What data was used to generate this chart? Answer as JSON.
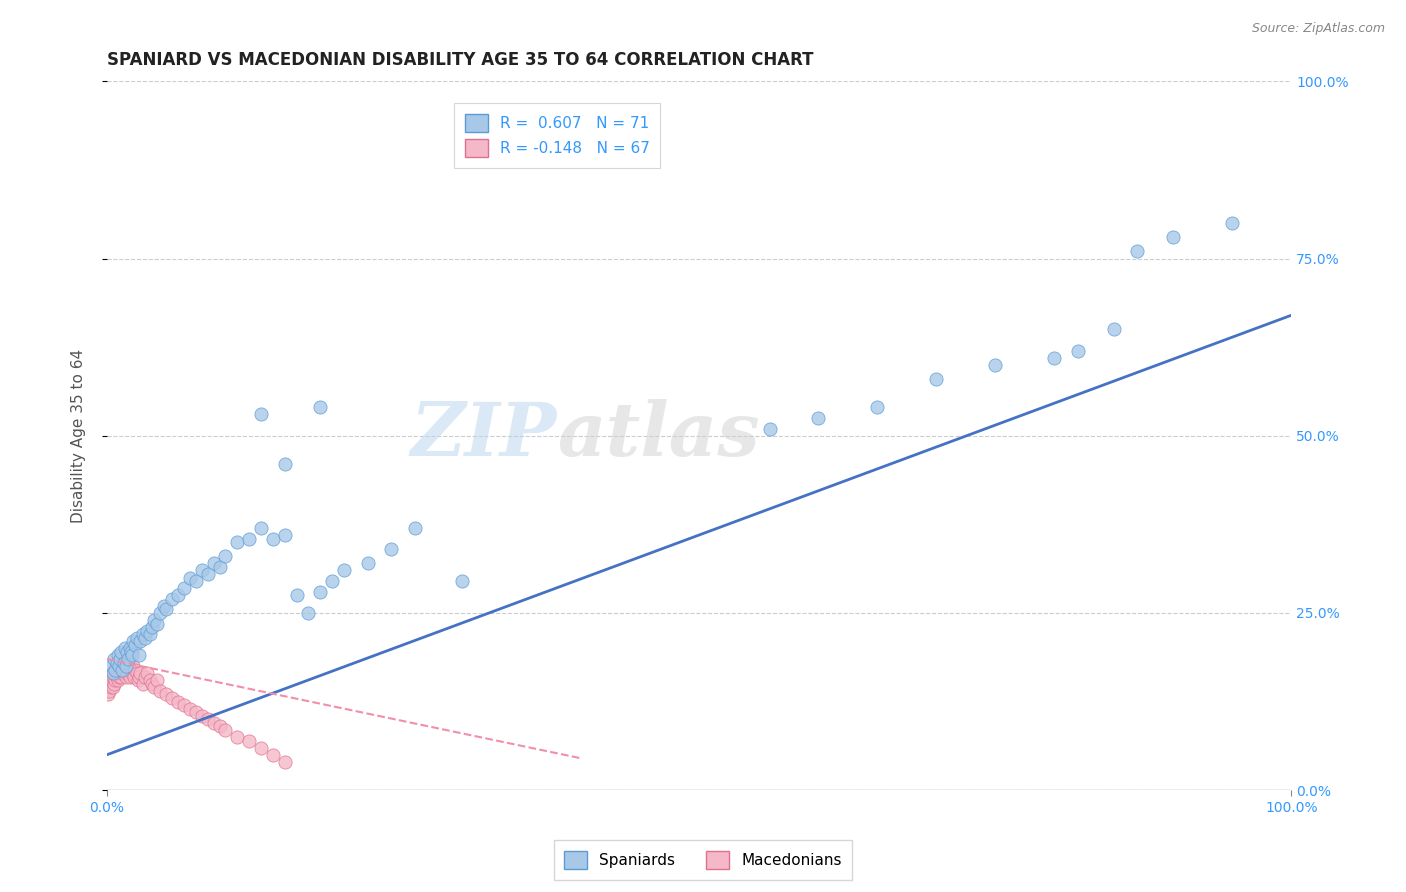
{
  "title": "SPANIARD VS MACEDONIAN DISABILITY AGE 35 TO 64 CORRELATION CHART",
  "source_text": "Source: ZipAtlas.com",
  "ylabel": "Disability Age 35 to 64",
  "xlim": [
    0,
    1
  ],
  "ylim": [
    0,
    1
  ],
  "ytick_positions": [
    0.0,
    0.25,
    0.5,
    0.75,
    1.0
  ],
  "spaniard_color": "#a8c8e8",
  "macedonian_color": "#f4b8c8",
  "spaniard_edge_color": "#5b9bd5",
  "macedonian_edge_color": "#e07090",
  "spaniard_line_color": "#4472c4",
  "macedonian_line_color": "#f090a8",
  "legend_R1_label": "R =  0.607   N = 71",
  "legend_R2_label": "R = -0.148   N = 67",
  "legend_label1": "Spaniards",
  "legend_label2": "Macedonians",
  "watermark_1": "ZIP",
  "watermark_2": "atlas",
  "background_color": "#ffffff",
  "grid_color": "#cccccc",
  "spaniard_x": [
    0.003,
    0.005,
    0.006,
    0.007,
    0.008,
    0.009,
    0.01,
    0.011,
    0.012,
    0.013,
    0.014,
    0.015,
    0.016,
    0.017,
    0.018,
    0.019,
    0.02,
    0.021,
    0.022,
    0.024,
    0.025,
    0.027,
    0.028,
    0.03,
    0.032,
    0.034,
    0.036,
    0.038,
    0.04,
    0.042,
    0.045,
    0.048,
    0.05,
    0.055,
    0.06,
    0.065,
    0.07,
    0.075,
    0.08,
    0.085,
    0.09,
    0.095,
    0.1,
    0.11,
    0.12,
    0.13,
    0.14,
    0.15,
    0.16,
    0.17,
    0.18,
    0.19,
    0.2,
    0.22,
    0.24,
    0.26,
    0.3,
    0.13,
    0.15,
    0.18,
    0.56,
    0.6,
    0.65,
    0.7,
    0.75,
    0.8,
    0.82,
    0.85,
    0.87,
    0.9,
    0.95
  ],
  "spaniard_y": [
    0.175,
    0.165,
    0.185,
    0.17,
    0.18,
    0.19,
    0.175,
    0.185,
    0.195,
    0.17,
    0.18,
    0.2,
    0.175,
    0.195,
    0.185,
    0.2,
    0.195,
    0.19,
    0.21,
    0.205,
    0.215,
    0.19,
    0.21,
    0.22,
    0.215,
    0.225,
    0.22,
    0.23,
    0.24,
    0.235,
    0.25,
    0.26,
    0.255,
    0.27,
    0.275,
    0.285,
    0.3,
    0.295,
    0.31,
    0.305,
    0.32,
    0.315,
    0.33,
    0.35,
    0.355,
    0.37,
    0.355,
    0.36,
    0.275,
    0.25,
    0.28,
    0.295,
    0.31,
    0.32,
    0.34,
    0.37,
    0.295,
    0.53,
    0.46,
    0.54,
    0.51,
    0.525,
    0.54,
    0.58,
    0.6,
    0.61,
    0.62,
    0.65,
    0.76,
    0.78,
    0.8
  ],
  "macedonian_x": [
    0.001,
    0.002,
    0.002,
    0.003,
    0.003,
    0.004,
    0.004,
    0.005,
    0.005,
    0.006,
    0.006,
    0.007,
    0.007,
    0.008,
    0.008,
    0.009,
    0.009,
    0.01,
    0.01,
    0.011,
    0.011,
    0.012,
    0.012,
    0.013,
    0.013,
    0.014,
    0.014,
    0.015,
    0.015,
    0.016,
    0.016,
    0.017,
    0.018,
    0.019,
    0.02,
    0.021,
    0.022,
    0.023,
    0.024,
    0.025,
    0.026,
    0.027,
    0.028,
    0.03,
    0.032,
    0.034,
    0.036,
    0.038,
    0.04,
    0.042,
    0.045,
    0.05,
    0.055,
    0.06,
    0.065,
    0.07,
    0.075,
    0.08,
    0.085,
    0.09,
    0.095,
    0.1,
    0.11,
    0.12,
    0.13,
    0.14,
    0.15
  ],
  "macedonian_y": [
    0.135,
    0.15,
    0.14,
    0.16,
    0.145,
    0.155,
    0.165,
    0.145,
    0.16,
    0.15,
    0.165,
    0.155,
    0.17,
    0.16,
    0.175,
    0.165,
    0.155,
    0.17,
    0.16,
    0.175,
    0.165,
    0.18,
    0.16,
    0.175,
    0.165,
    0.17,
    0.18,
    0.165,
    0.175,
    0.16,
    0.17,
    0.165,
    0.175,
    0.16,
    0.17,
    0.165,
    0.175,
    0.16,
    0.17,
    0.165,
    0.155,
    0.16,
    0.165,
    0.15,
    0.16,
    0.165,
    0.155,
    0.15,
    0.145,
    0.155,
    0.14,
    0.135,
    0.13,
    0.125,
    0.12,
    0.115,
    0.11,
    0.105,
    0.1,
    0.095,
    0.09,
    0.085,
    0.075,
    0.07,
    0.06,
    0.05,
    0.04
  ]
}
